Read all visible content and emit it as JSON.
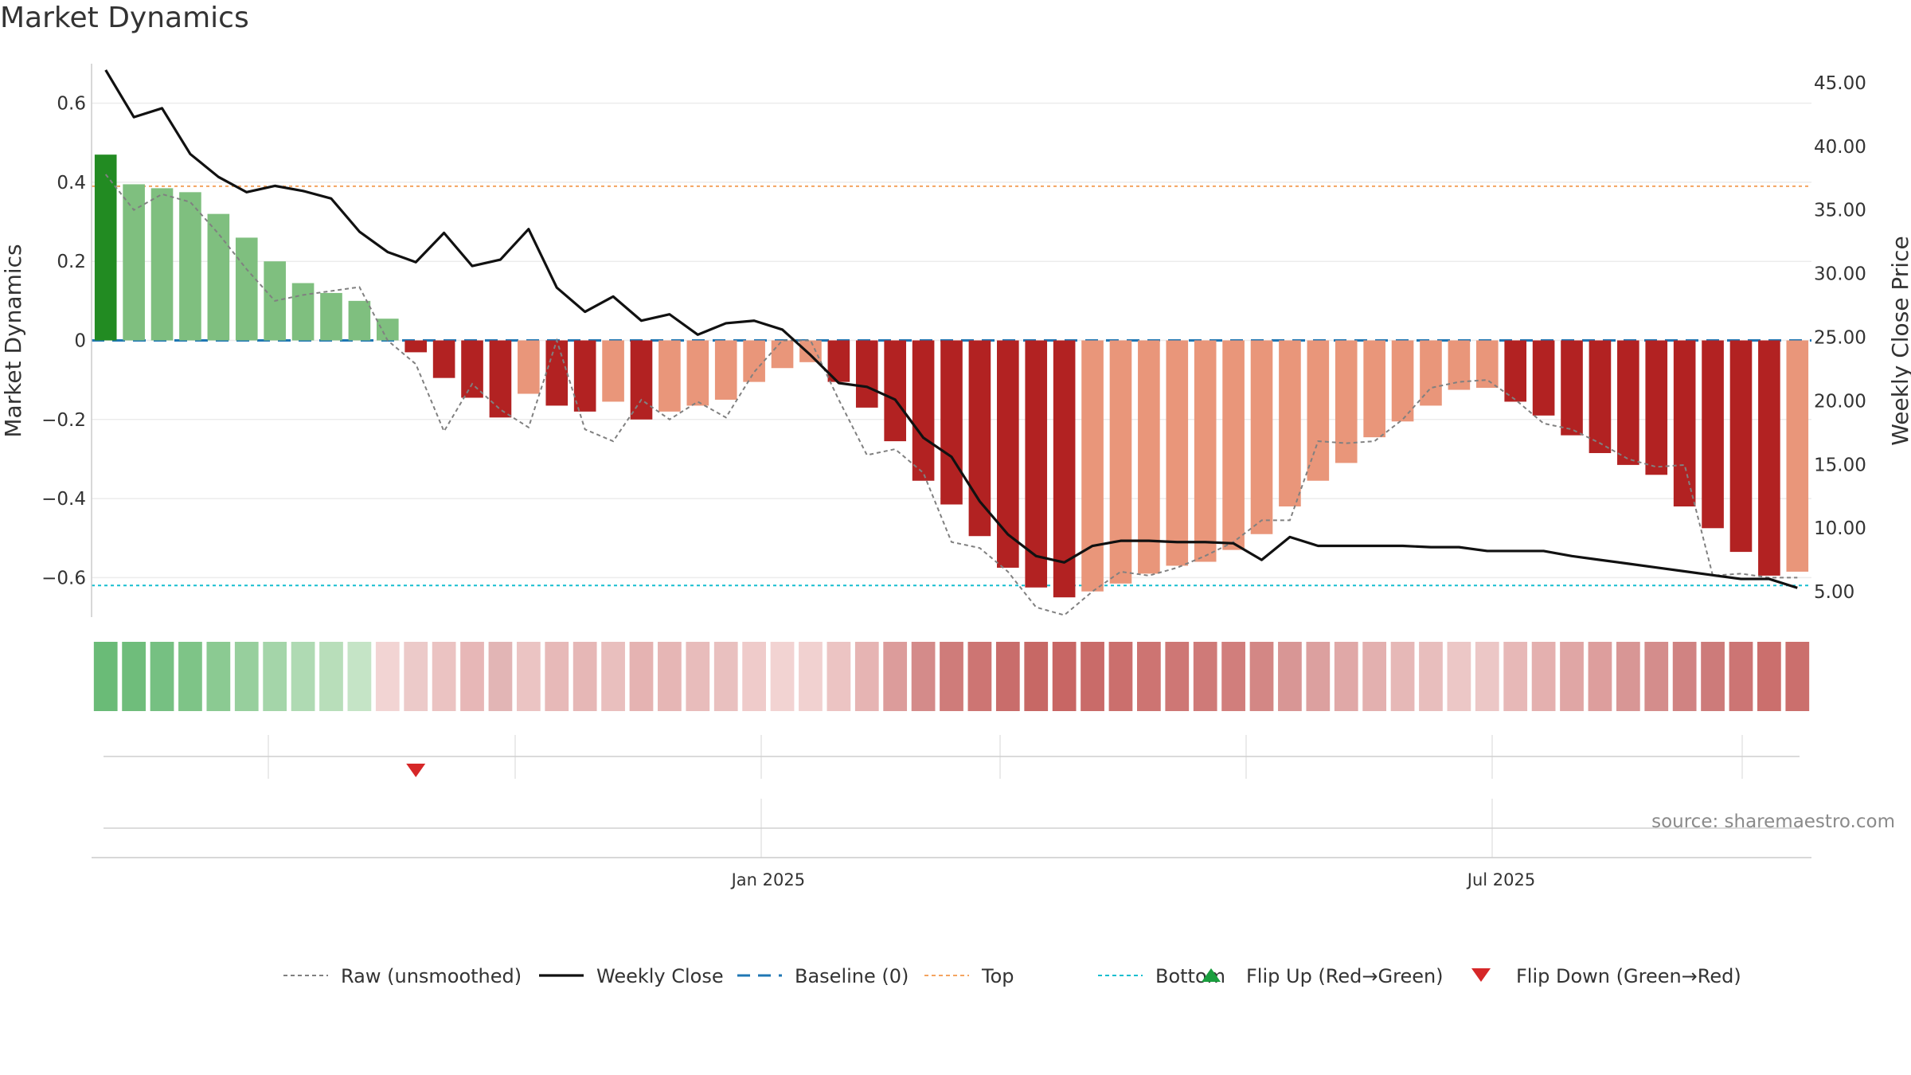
{
  "title": "Market Dynamics",
  "source": "source: sharemaestro.com",
  "chart_data": {
    "type": "bar+line",
    "title": "Market Dynamics",
    "ylabel_left": "Market Dynamics",
    "ylabel_right": "Weekly Close Price",
    "y_left_range": [
      -0.7,
      0.7
    ],
    "y_left_ticks": [
      0.6,
      0.4,
      0.2,
      0,
      -0.2,
      -0.4,
      -0.6
    ],
    "y_left_tick_labels": [
      "0.6",
      "0.4",
      "0.2",
      "0",
      "−0.2",
      "−0.4",
      "−0.6"
    ],
    "y_right_range": [
      3.0,
      46.5
    ],
    "y_right_ticks": [
      45,
      40,
      35,
      30,
      25,
      20,
      15,
      10,
      5
    ],
    "y_right_tick_labels": [
      "45.00",
      "40.00",
      "35.00",
      "30.00",
      "25.00",
      "20.00",
      "15.00",
      "10.00",
      "5.00"
    ],
    "x_tick_labels": [
      {
        "label": "Jan 2025",
        "week": 23.5
      },
      {
        "label": "Jul 2025",
        "week": 49.5
      }
    ],
    "top_level": 0.39,
    "bottom_level": -0.62,
    "baseline": 0,
    "bar_values": [
      0.47,
      0.395,
      0.385,
      0.375,
      0.32,
      0.26,
      0.2,
      0.145,
      0.12,
      0.1,
      0.055,
      -0.03,
      -0.095,
      -0.145,
      -0.195,
      -0.135,
      -0.165,
      -0.18,
      -0.155,
      -0.2,
      -0.18,
      -0.165,
      -0.15,
      -0.105,
      -0.07,
      -0.055,
      -0.105,
      -0.17,
      -0.255,
      -0.355,
      -0.415,
      -0.495,
      -0.575,
      -0.625,
      -0.65,
      -0.635,
      -0.615,
      -0.59,
      -0.57,
      -0.56,
      -0.53,
      -0.49,
      -0.42,
      -0.355,
      -0.31,
      -0.245,
      -0.205,
      -0.165,
      -0.125,
      -0.12,
      -0.155,
      -0.19,
      -0.24,
      -0.285,
      -0.315,
      -0.34,
      -0.42,
      -0.475,
      -0.535,
      -0.595,
      -0.585
    ],
    "bar_colors": [
      "#228b22",
      "#7fbf7f",
      "#7fbf7f",
      "#7fbf7f",
      "#7fbf7f",
      "#7fbf7f",
      "#7fbf7f",
      "#7fbf7f",
      "#7fbf7f",
      "#7fbf7f",
      "#7fbf7f",
      "#b22222",
      "#b22222",
      "#b22222",
      "#b22222",
      "#e9967a",
      "#b22222",
      "#b22222",
      "#e9967a",
      "#b22222",
      "#e9967a",
      "#e9967a",
      "#e9967a",
      "#e9967a",
      "#e9967a",
      "#e9967a",
      "#b22222",
      "#b22222",
      "#b22222",
      "#b22222",
      "#b22222",
      "#b22222",
      "#b22222",
      "#b22222",
      "#b22222",
      "#e9967a",
      "#e9967a",
      "#e9967a",
      "#e9967a",
      "#e9967a",
      "#e9967a",
      "#e9967a",
      "#e9967a",
      "#e9967a",
      "#e9967a",
      "#e9967a",
      "#e9967a",
      "#e9967a",
      "#e9967a",
      "#e9967a",
      "#b22222",
      "#b22222",
      "#b22222",
      "#b22222",
      "#b22222",
      "#b22222",
      "#b22222",
      "#b22222",
      "#b22222",
      "#b22222",
      "#e9967a"
    ],
    "raw_values": [
      0.42,
      0.33,
      0.37,
      0.35,
      0.27,
      0.18,
      0.1,
      0.115,
      0.125,
      0.135,
      0.0,
      -0.06,
      -0.23,
      -0.11,
      -0.175,
      -0.22,
      0.0,
      -0.225,
      -0.255,
      -0.15,
      -0.2,
      -0.155,
      -0.195,
      -0.08,
      0.0,
      0.0,
      -0.15,
      -0.29,
      -0.275,
      -0.335,
      -0.51,
      -0.525,
      -0.585,
      -0.675,
      -0.695,
      -0.635,
      -0.585,
      -0.595,
      -0.575,
      -0.545,
      -0.51,
      -0.455,
      -0.455,
      -0.255,
      -0.26,
      -0.255,
      -0.2,
      -0.12,
      -0.105,
      -0.1,
      -0.15,
      -0.21,
      -0.225,
      -0.26,
      -0.3,
      -0.32,
      -0.315,
      -0.595,
      -0.59,
      -0.6,
      -0.6
    ],
    "weekly_close": [
      46.0,
      42.3,
      43.0,
      39.4,
      37.6,
      36.4,
      36.9,
      36.5,
      35.9,
      33.3,
      31.7,
      30.9,
      33.2,
      30.6,
      31.1,
      33.5,
      28.9,
      27.0,
      28.2,
      26.3,
      26.8,
      25.2,
      26.1,
      26.3,
      25.6,
      23.6,
      21.4,
      21.1,
      20.1,
      17.1,
      15.6,
      12.1,
      9.5,
      7.8,
      7.3,
      8.6,
      9.0,
      9.0,
      8.9,
      8.9,
      8.8,
      7.5,
      9.3,
      8.6,
      8.6,
      8.6,
      8.6,
      8.5,
      8.5,
      8.2,
      8.2,
      8.2,
      7.8,
      7.5,
      7.2,
      6.9,
      6.6,
      6.3,
      6.0,
      6.0,
      5.3
    ],
    "heat_colors": [
      "#6abb77",
      "#6fbd7b",
      "#76c082",
      "#7ec487",
      "#8bca92",
      "#97cf9d",
      "#a4d5a9",
      "#afdab3",
      "#b8deba",
      "#c5e4c6",
      "#f2d4d3",
      "#eccac9",
      "#ebc3c2",
      "#e7b7b7",
      "#e2b5b5",
      "#ebc4c3",
      "#e7b9b8",
      "#e6b7b6",
      "#e9bfbe",
      "#e5b3b2",
      "#e6b6b5",
      "#e8bcbb",
      "#e9c0bf",
      "#efcbca",
      "#f2d3d2",
      "#f1d1d0",
      "#ecc4c3",
      "#e6b4b3",
      "#dc9c9b",
      "#d48b8a",
      "#cf7c7a",
      "#cd7573",
      "#c96d6b",
      "#c76865",
      "#c86664",
      "#c96b69",
      "#cb6f6d",
      "#cd7472",
      "#ce7775",
      "#cf7a78",
      "#d17e7c",
      "#d38785",
      "#d89695",
      "#dca09f",
      "#e0a8a7",
      "#e3b0af",
      "#e6b8b7",
      "#e8bebd",
      "#ecc7c6",
      "#ecc7c6",
      "#e7b8b7",
      "#e4b0af",
      "#e0a6a5",
      "#dd9e9d",
      "#d89695",
      "#d48d8c",
      "#d08382",
      "#cd7b7a",
      "#cc7574",
      "#cb6f6d",
      "#cb6f6d"
    ],
    "flip_down_weeks": [
      11
    ],
    "flip_up_weeks": [],
    "legend": [
      {
        "label": "Raw (unsmoothed)",
        "kind": "line-dotted",
        "color": "#808080"
      },
      {
        "label": "Weekly Close",
        "kind": "line-solid",
        "color": "#111111"
      },
      {
        "label": "Baseline (0)",
        "kind": "line-dashed",
        "color": "#1f77b4"
      },
      {
        "label": "Top",
        "kind": "line-dotted",
        "color": "#f4a460"
      },
      {
        "label": "Bottom",
        "kind": "line-dotted",
        "color": "#17becf"
      },
      {
        "label": "Flip Up (Red→Green)",
        "kind": "triangle-up",
        "color": "#1a9e3e"
      },
      {
        "label": "Flip Down (Green→Red)",
        "kind": "triangle-down",
        "color": "#d62728"
      }
    ]
  }
}
